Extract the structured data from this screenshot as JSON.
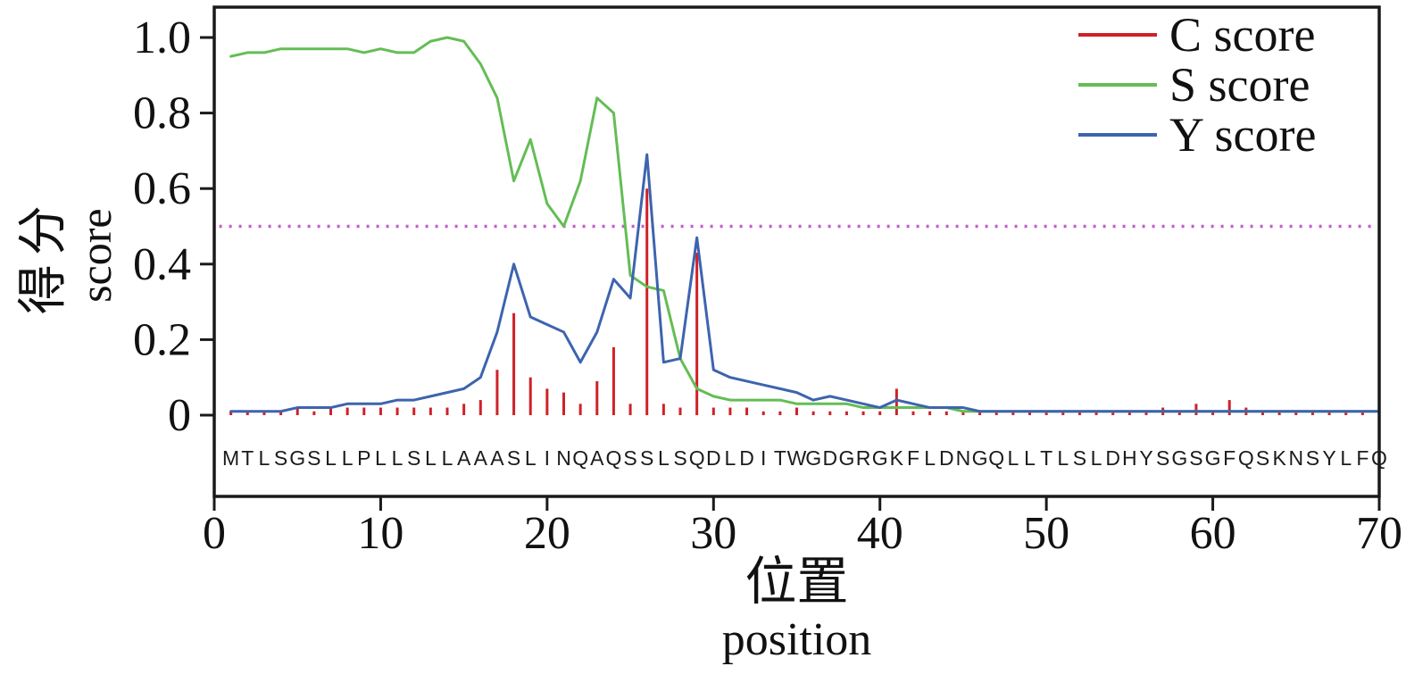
{
  "chart_data": {
    "type": "line",
    "xlabel_zh": "位置",
    "xlabel_en": "position",
    "ylabel_zh": "得分",
    "ylabel_en": "score",
    "xlim": [
      0,
      70
    ],
    "ylim": [
      0,
      1.0
    ],
    "x_ticks": [
      0,
      10,
      20,
      30,
      40,
      50,
      60,
      70
    ],
    "x_tick_labels": [
      "0",
      "10",
      "20",
      "30",
      "40",
      "50",
      "60",
      "70"
    ],
    "y_ticks": [
      0,
      0.2,
      0.4,
      0.6,
      0.8,
      1.0
    ],
    "y_tick_labels": [
      "0",
      "0.2",
      "0.4",
      "0.6",
      "0.8",
      "1.0"
    ],
    "grid": false,
    "legend_position": "top-right",
    "threshold": 0.5,
    "threshold_color": "#c060c8",
    "axis_color": "#1a1a1a",
    "sequence": "MTLSGSLLPLLSLLAAASLINQAQSSLSQDLDITWGDGRGKFLDNGQLLTLSLDHYSGSGFQSKNSYLFQ",
    "series": [
      {
        "name": "C score",
        "color": "#cf2128",
        "style": "impulse",
        "values": [
          0.01,
          0.01,
          0.01,
          0.01,
          0.02,
          0.01,
          0.02,
          0.02,
          0.02,
          0.02,
          0.02,
          0.02,
          0.02,
          0.02,
          0.03,
          0.04,
          0.12,
          0.27,
          0.1,
          0.07,
          0.06,
          0.03,
          0.09,
          0.18,
          0.03,
          0.6,
          0.03,
          0.02,
          0.43,
          0.02,
          0.02,
          0.02,
          0.01,
          0.01,
          0.02,
          0.01,
          0.01,
          0.01,
          0.01,
          0.01,
          0.07,
          0.01,
          0.01,
          0.01,
          0.01,
          0.01,
          0.01,
          0.01,
          0.01,
          0.01,
          0.01,
          0.01,
          0.01,
          0.01,
          0.01,
          0.01,
          0.02,
          0.01,
          0.03,
          0.01,
          0.04,
          0.02,
          0.01,
          0.01,
          0.01,
          0.01,
          0.01,
          0.01,
          0.01,
          0.01
        ]
      },
      {
        "name": "S score",
        "color": "#64bd55",
        "style": "line",
        "values": [
          0.95,
          0.96,
          0.96,
          0.97,
          0.97,
          0.97,
          0.97,
          0.97,
          0.96,
          0.97,
          0.96,
          0.96,
          0.99,
          1.0,
          0.99,
          0.93,
          0.84,
          0.62,
          0.73,
          0.56,
          0.5,
          0.62,
          0.84,
          0.8,
          0.37,
          0.34,
          0.33,
          0.15,
          0.07,
          0.05,
          0.04,
          0.04,
          0.04,
          0.04,
          0.03,
          0.03,
          0.03,
          0.03,
          0.02,
          0.02,
          0.02,
          0.02,
          0.02,
          0.02,
          0.01,
          0.01,
          0.01,
          0.01,
          0.01,
          0.01,
          0.01,
          0.01,
          0.01,
          0.01,
          0.01,
          0.01,
          0.01,
          0.01,
          0.01,
          0.01,
          0.01,
          0.01,
          0.01,
          0.01,
          0.01,
          0.01,
          0.01,
          0.01,
          0.01,
          0.01
        ]
      },
      {
        "name": "Y score",
        "color": "#3d64ae",
        "style": "line",
        "values": [
          0.01,
          0.01,
          0.01,
          0.01,
          0.02,
          0.02,
          0.02,
          0.03,
          0.03,
          0.03,
          0.04,
          0.04,
          0.05,
          0.06,
          0.07,
          0.1,
          0.22,
          0.4,
          0.26,
          0.24,
          0.22,
          0.14,
          0.22,
          0.36,
          0.31,
          0.69,
          0.14,
          0.15,
          0.47,
          0.12,
          0.1,
          0.09,
          0.08,
          0.07,
          0.06,
          0.04,
          0.05,
          0.04,
          0.03,
          0.02,
          0.04,
          0.03,
          0.02,
          0.02,
          0.02,
          0.01,
          0.01,
          0.01,
          0.01,
          0.01,
          0.01,
          0.01,
          0.01,
          0.01,
          0.01,
          0.01,
          0.01,
          0.01,
          0.01,
          0.01,
          0.01,
          0.01,
          0.01,
          0.01,
          0.01,
          0.01,
          0.01,
          0.01,
          0.01,
          0.01
        ]
      }
    ]
  }
}
